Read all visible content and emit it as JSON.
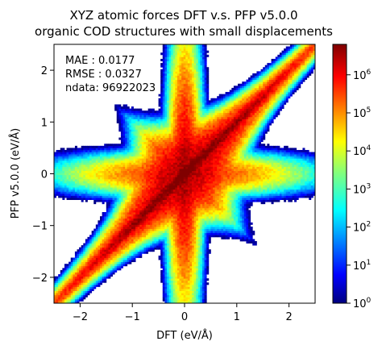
{
  "chart_data": {
    "type": "heatmap",
    "title": "XYZ atomic forces DFT v.s. PFP v5.0.0",
    "subtitle": "organic COD structures with small displacements",
    "xlabel": "DFT (eV/Å)",
    "ylabel": "PFP v5.0.0 (eV/Å)",
    "xlim": [
      -2.5,
      2.5
    ],
    "ylim": [
      -2.5,
      2.5
    ],
    "xticks": [
      {
        "value": -2,
        "label": "−2"
      },
      {
        "value": -1,
        "label": "−1"
      },
      {
        "value": 0,
        "label": "0"
      },
      {
        "value": 1,
        "label": "1"
      },
      {
        "value": 2,
        "label": "2"
      }
    ],
    "yticks": [
      {
        "value": -2,
        "label": "−2"
      },
      {
        "value": -1,
        "label": "−1"
      },
      {
        "value": 0,
        "label": "0"
      },
      {
        "value": 1,
        "label": "1"
      },
      {
        "value": 2,
        "label": "2"
      }
    ],
    "annotations": {
      "mae": "MAE : 0.0177",
      "rmse": "RMSE : 0.0327",
      "ndata": "ndata: 96922023"
    },
    "colorbar": {
      "scale": "log",
      "range_exp": [
        0,
        6.8
      ],
      "colormap": "jet",
      "ticks": [
        {
          "exp": 0,
          "base": "10",
          "sup": "0"
        },
        {
          "exp": 1,
          "base": "10",
          "sup": "1"
        },
        {
          "exp": 2,
          "base": "10",
          "sup": "2"
        },
        {
          "exp": 3,
          "base": "10",
          "sup": "3"
        },
        {
          "exp": 4,
          "base": "10",
          "sup": "4"
        },
        {
          "exp": 5,
          "base": "10",
          "sup": "5"
        },
        {
          "exp": 6,
          "base": "10",
          "sup": "6"
        }
      ]
    },
    "density_model": {
      "peak_log10_count": 6.8,
      "diagonal_sigma": 0.045,
      "diagonal_extent": 1.7,
      "fan_width": 0.3
    }
  }
}
